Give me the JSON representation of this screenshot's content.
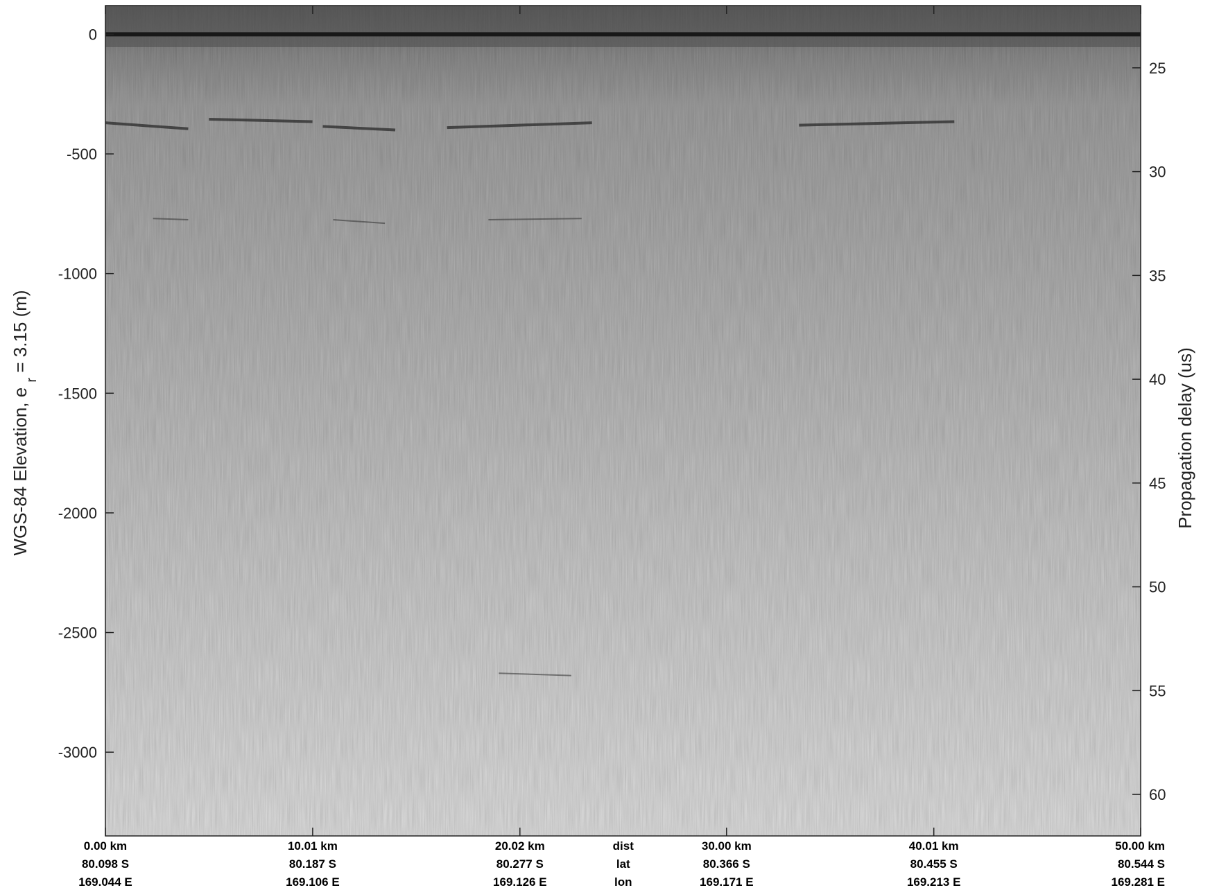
{
  "colors": {
    "background": "#ffffff",
    "axis": "#222222",
    "radargram_top": "#6e6e6e",
    "radargram_mid": "#a9a9a9",
    "radargram_bottom": "#dcdcdc"
  },
  "chart_data": {
    "type": "heatmap",
    "title": "",
    "left_axis": {
      "label": "WGS-84 Elevation, e",
      "label_sub": "r",
      "label_tail": " = 3.15 (m)",
      "ticks": [
        0,
        -500,
        -1000,
        -1500,
        -2000,
        -2500,
        -3000
      ],
      "range": [
        -3350,
        120
      ]
    },
    "right_axis": {
      "label": "Propagation delay (us)",
      "ticks": [
        25,
        30,
        35,
        40,
        45,
        50,
        55,
        60
      ],
      "range": [
        22,
        62
      ]
    },
    "x_axis": {
      "range_km": [
        0,
        50
      ],
      "row_labels": [
        "dist",
        "lat",
        "lon"
      ],
      "ticks": [
        {
          "dist_km": 0.0,
          "dist": "0.00 km",
          "lat": "80.098 S",
          "lon": "169.044 E"
        },
        {
          "dist_km": 10.01,
          "dist": "10.01 km",
          "lat": "80.187 S",
          "lon": "169.106 E"
        },
        {
          "dist_km": 20.02,
          "dist": "20.02 km",
          "lat": "80.277 S",
          "lon": "169.126 E"
        },
        {
          "dist_km": 30.0,
          "dist": "30.00 km",
          "lat": "80.366 S",
          "lon": "169.171 E"
        },
        {
          "dist_km": 40.01,
          "dist": "40.01 km",
          "lat": "80.455 S",
          "lon": "169.213 E"
        },
        {
          "dist_km": 50.0,
          "dist": "50.00 km",
          "lat": "80.544 S",
          "lon": "169.281 E"
        }
      ]
    },
    "features": {
      "surface_elevation_m": 0,
      "basal_reflector_segments": [
        {
          "x_km": [
            0.0,
            4.0
          ],
          "elev_m": [
            -370,
            -395
          ]
        },
        {
          "x_km": [
            5.0,
            10.0
          ],
          "elev_m": [
            -355,
            -365
          ]
        },
        {
          "x_km": [
            10.5,
            14.0
          ],
          "elev_m": [
            -385,
            -400
          ]
        },
        {
          "x_km": [
            16.5,
            23.5
          ],
          "elev_m": [
            -390,
            -370
          ]
        },
        {
          "x_km": [
            33.5,
            41.0
          ],
          "elev_m": [
            -380,
            -365
          ]
        }
      ],
      "multiple_reflector_segments": [
        {
          "x_km": [
            2.3,
            4.0
          ],
          "elev_m": [
            -770,
            -775
          ]
        },
        {
          "x_km": [
            11.0,
            13.5
          ],
          "elev_m": [
            -775,
            -790
          ]
        },
        {
          "x_km": [
            18.5,
            23.0
          ],
          "elev_m": [
            -775,
            -770
          ]
        },
        {
          "x_km": [
            19.0,
            22.5
          ],
          "elev_m": [
            -2670,
            -2680
          ]
        }
      ]
    }
  }
}
